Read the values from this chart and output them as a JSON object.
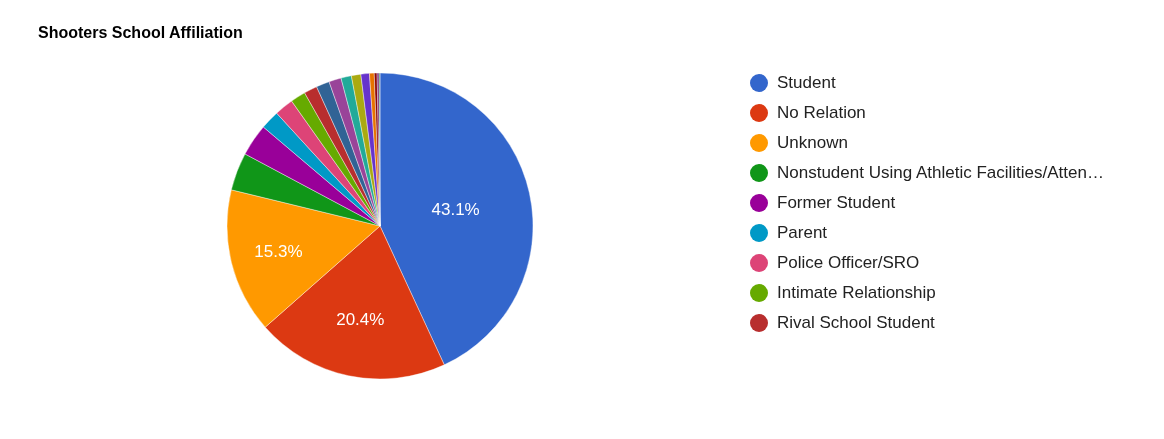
{
  "chart_data": {
    "type": "pie",
    "title": "Shooters School Affiliation",
    "categories": [
      "Student",
      "No Relation",
      "Unknown",
      "Nonstudent Using Athletic Facilities/Atten…",
      "Former Student",
      "Parent",
      "Police Officer/SRO",
      "Intimate Relationship",
      "Rival School Student",
      null,
      null,
      null,
      null,
      null,
      null,
      null,
      null,
      null
    ],
    "values": [
      43.1,
      20.4,
      15.3,
      4.0,
      3.4,
      2.0,
      2.0,
      1.6,
      1.4,
      1.4,
      1.3,
      1.1,
      1.0,
      0.9,
      0.5,
      0.3,
      0.2,
      0.1
    ],
    "colors": [
      "#3366cc",
      "#dc3912",
      "#ff9900",
      "#109618",
      "#990099",
      "#0099c6",
      "#dd4477",
      "#66aa00",
      "#b82e2e",
      "#316395",
      "#994499",
      "#22aa99",
      "#aaaa11",
      "#6633cc",
      "#e67300",
      "#8b0707",
      "#651067",
      "#329262"
    ],
    "value_labels": [
      "43.1%",
      "20.4%",
      "15.3%",
      null,
      null,
      null,
      null,
      null,
      null,
      null,
      null,
      null,
      null,
      null,
      null,
      null,
      null,
      null
    ],
    "legend": "right"
  }
}
